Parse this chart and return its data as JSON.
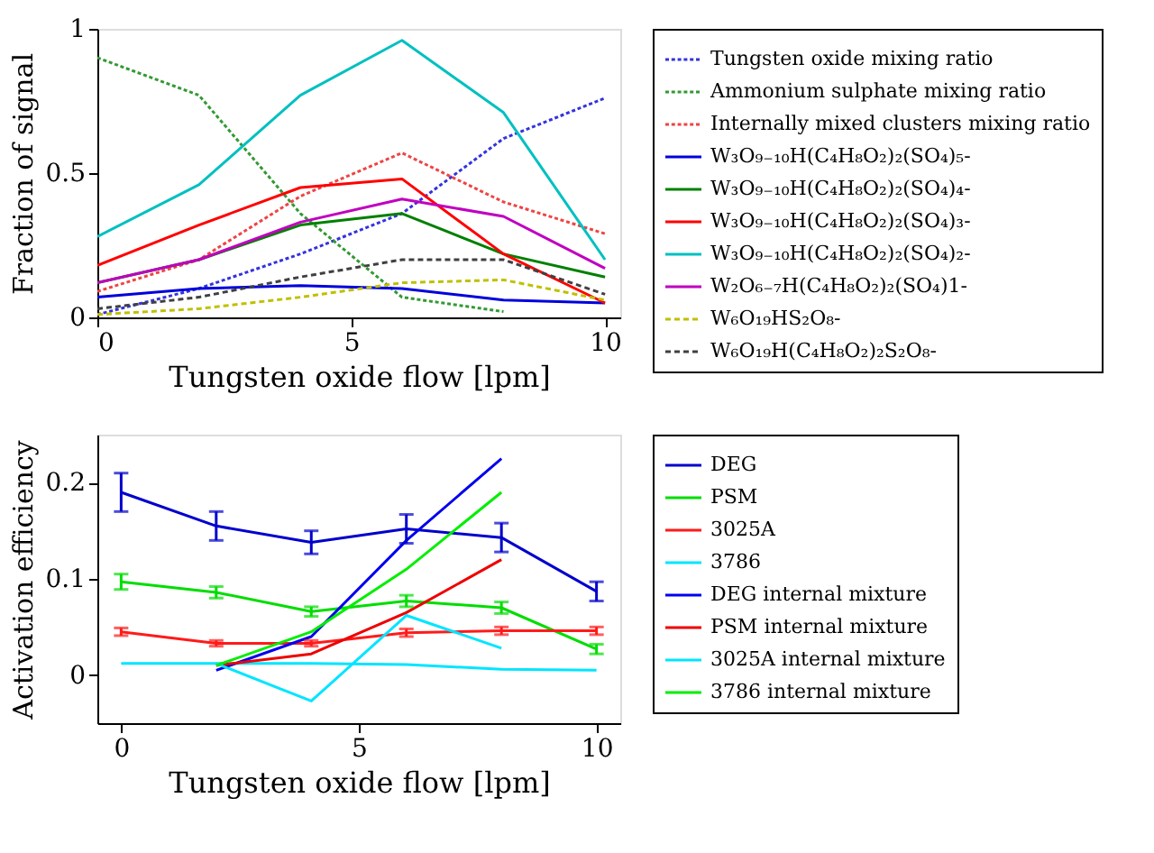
{
  "chart_data": [
    {
      "type": "line",
      "xlabel": "Tungsten oxide flow [lpm]",
      "ylabel": "Fraction of signal",
      "x": [
        0,
        2,
        4,
        6,
        8,
        10
      ],
      "xlim": [
        0,
        10.3
      ],
      "ylim": [
        0,
        1
      ],
      "xticks": [
        0,
        5,
        10
      ],
      "yticks": [
        0,
        0.5,
        1
      ],
      "legend": "right",
      "grid": false,
      "marker": "none",
      "series": [
        {
          "name": "Tungsten oxide mixing ratio",
          "color": "#3333dd",
          "line_style": "dotted",
          "values": [
            0.01,
            0.1,
            0.22,
            0.36,
            0.62,
            0.76
          ]
        },
        {
          "name": "Ammonium sulphate mixing ratio",
          "color": "#339933",
          "line_style": "dotted",
          "values": [
            0.9,
            0.77,
            0.36,
            0.07,
            0.02,
            null
          ]
        },
        {
          "name": "Internally mixed clusters mixing ratio",
          "color": "#ee4444",
          "line_style": "dotted",
          "values": [
            0.09,
            0.2,
            0.42,
            0.57,
            0.4,
            0.29
          ]
        },
        {
          "name": "W₃O₉₋₁₀H(C₄H₈O₂)₂(SO₄)₅-",
          "color": "#0000dd",
          "line_style": "solid",
          "values": [
            0.07,
            0.1,
            0.11,
            0.1,
            0.06,
            0.05
          ]
        },
        {
          "name": "W₃O₉₋₁₀H(C₄H₈O₂)₂(SO₄)₄-",
          "color": "#008000",
          "line_style": "solid",
          "values": [
            0.12,
            0.2,
            0.32,
            0.36,
            0.22,
            0.14
          ]
        },
        {
          "name": "W₃O₉₋₁₀H(C₄H₈O₂)₂(SO₄)₃-",
          "color": "#ff0000",
          "line_style": "solid",
          "values": [
            0.18,
            0.32,
            0.45,
            0.48,
            0.22,
            0.05
          ]
        },
        {
          "name": "W₃O₉₋₁₀H(C₄H₈O₂)₂(SO₄)₂-",
          "color": "#00c0c0",
          "line_style": "solid",
          "values": [
            0.28,
            0.46,
            0.77,
            0.96,
            0.71,
            0.2
          ]
        },
        {
          "name": "W₂O₆₋₇H(C₄H₈O₂)₂(SO₄)1-",
          "color": "#c000c0",
          "line_style": "solid",
          "values": [
            0.12,
            0.2,
            0.33,
            0.41,
            0.35,
            0.17
          ]
        },
        {
          "name": "W₆O₁₉HS₂O₈-",
          "color": "#c0c000",
          "line_style": "dashed",
          "values": [
            0.01,
            0.03,
            0.07,
            0.12,
            0.13,
            0.06
          ]
        },
        {
          "name": "W₆O₁₉H(C₄H₈O₂)₂S₂O₈-",
          "color": "#404040",
          "line_style": "dashed",
          "values": [
            0.03,
            0.07,
            0.14,
            0.2,
            0.2,
            0.08
          ]
        }
      ]
    },
    {
      "type": "line",
      "xlabel": "Tungsten oxide flow [lpm]",
      "ylabel": "Activation efficiency",
      "xlim": [
        -0.5,
        10.5
      ],
      "ylim": [
        -0.05,
        0.25
      ],
      "xticks": [
        0,
        5,
        10
      ],
      "yticks": [
        0,
        0.1,
        0.2
      ],
      "legend": "right",
      "grid": false,
      "marker": "none",
      "series": [
        {
          "name": "DEG",
          "color": "#0000cc",
          "x": [
            0,
            2,
            4,
            6,
            8,
            10
          ],
          "values": [
            0.19,
            0.155,
            0.138,
            0.152,
            0.143,
            0.087
          ],
          "errors": [
            0.02,
            0.015,
            0.012,
            0.015,
            0.015,
            0.01
          ]
        },
        {
          "name": "PSM",
          "color": "#00dd00",
          "x": [
            0,
            2,
            4,
            6,
            8,
            10
          ],
          "values": [
            0.097,
            0.086,
            0.066,
            0.077,
            0.07,
            0.027
          ],
          "errors": [
            0.008,
            0.006,
            0.005,
            0.006,
            0.006,
            0.005
          ]
        },
        {
          "name": "3025A",
          "color": "#ff1a1a",
          "x": [
            0,
            2,
            4,
            6,
            8,
            10
          ],
          "values": [
            0.045,
            0.033,
            0.033,
            0.044,
            0.046,
            0.046
          ],
          "errors": [
            0.004,
            0.003,
            0.003,
            0.004,
            0.004,
            0.004
          ]
        },
        {
          "name": "3786",
          "color": "#00e5ff",
          "x": [
            0,
            2,
            4,
            6,
            8,
            10
          ],
          "values": [
            0.012,
            0.012,
            0.012,
            0.011,
            0.006,
            0.005
          ]
        },
        {
          "name": "DEG internal mixture",
          "color": "#0000ee",
          "x": [
            2,
            4,
            6,
            8
          ],
          "values": [
            0.005,
            0.04,
            0.14,
            0.225
          ]
        },
        {
          "name": "PSM internal mixture",
          "color": "#ee0000",
          "x": [
            2,
            4,
            6,
            8
          ],
          "values": [
            0.01,
            0.022,
            0.065,
            0.12
          ]
        },
        {
          "name": "3025A internal mixture",
          "color": "#00e5ff",
          "x": [
            2,
            4,
            6,
            8
          ],
          "values": [
            0.012,
            -0.027,
            0.062,
            0.028
          ]
        },
        {
          "name": "3786 internal mixture",
          "color": "#00ee00",
          "x": [
            2,
            4,
            6,
            8
          ],
          "values": [
            0.01,
            0.045,
            0.11,
            0.19
          ]
        }
      ]
    }
  ]
}
